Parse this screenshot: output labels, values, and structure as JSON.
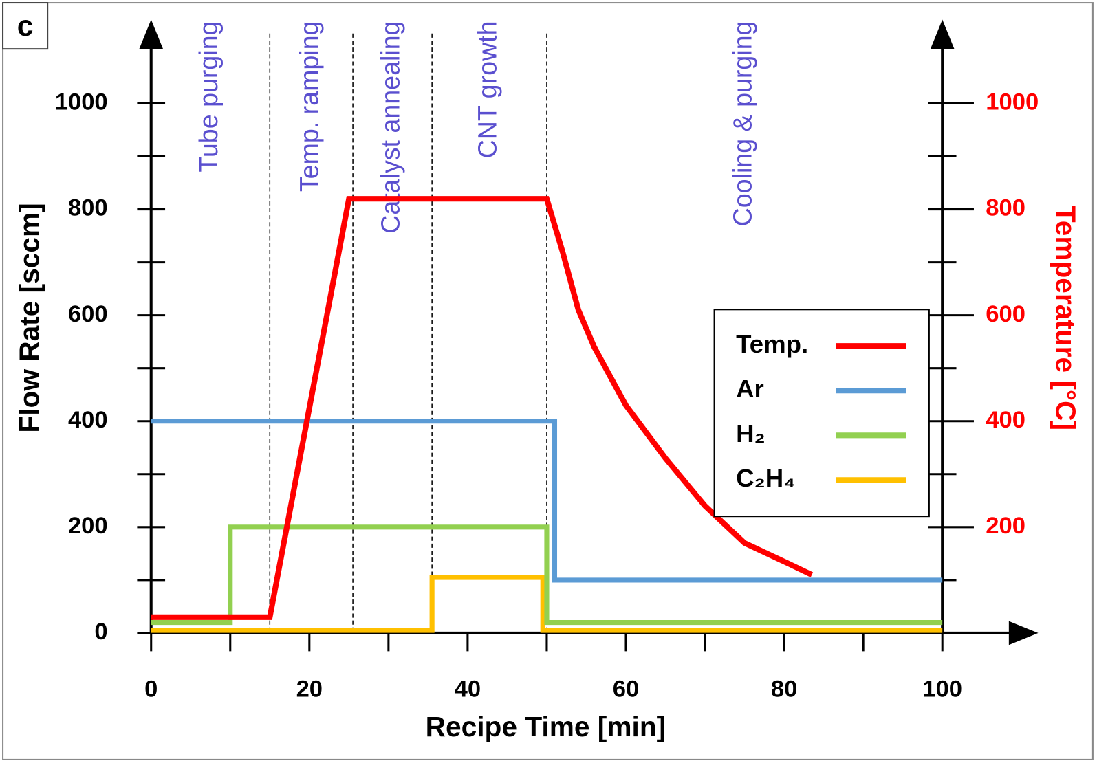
{
  "chart_data": {
    "type": "line",
    "panel_label": "c",
    "x_label": "Recipe Time [min]",
    "y_label": "Flow Rate [sccm]",
    "y2_label": "Temperature [°C]",
    "xlim": [
      0,
      100
    ],
    "xticks": [
      0,
      20,
      40,
      60,
      80,
      100
    ],
    "xminorticks": [
      10,
      30,
      50,
      70,
      90
    ],
    "ylim": [
      0,
      1000
    ],
    "yticks": [
      0,
      200,
      400,
      600,
      800,
      1000
    ],
    "yminorticks": [
      100,
      300,
      500,
      700,
      900
    ],
    "y2lim": [
      0,
      1000
    ],
    "y2ticks": [
      200,
      400,
      600,
      800,
      1000
    ],
    "y2minorticks": [
      100,
      300,
      500,
      700,
      900
    ],
    "y2_color": "#ff0000",
    "legend": "right",
    "phase_dividers": [
      15,
      25.5,
      35.5,
      50
    ],
    "phases": [
      "Tube purging",
      "Temp. ramping",
      "Catalyst annealing",
      "CNT growth",
      "Cooling & purging"
    ],
    "phase_color": "#5a4fcf",
    "series": [
      {
        "name": "Temp.",
        "color": "#ff0000",
        "axis": "y2",
        "x": [
          0,
          15,
          25,
          50,
          52,
          54,
          56,
          60,
          65,
          70,
          75,
          80,
          83.5
        ],
        "values": [
          30,
          30,
          820,
          820,
          720,
          610,
          540,
          430,
          330,
          240,
          170,
          135,
          110
        ]
      },
      {
        "name": "Ar",
        "color": "#5b9bd5",
        "x": [
          0,
          51,
          51,
          100
        ],
        "values": [
          400,
          400,
          100,
          100
        ]
      },
      {
        "name": "H₂",
        "color": "#92d050",
        "x": [
          0,
          10,
          10,
          50,
          50,
          100
        ],
        "values": [
          20,
          20,
          200,
          200,
          20,
          20
        ]
      },
      {
        "name": "C₂H₄",
        "color": "#ffc000",
        "x": [
          0,
          35.5,
          35.5,
          49.5,
          49.5,
          100
        ],
        "values": [
          5,
          5,
          105,
          105,
          5,
          5
        ]
      }
    ]
  }
}
